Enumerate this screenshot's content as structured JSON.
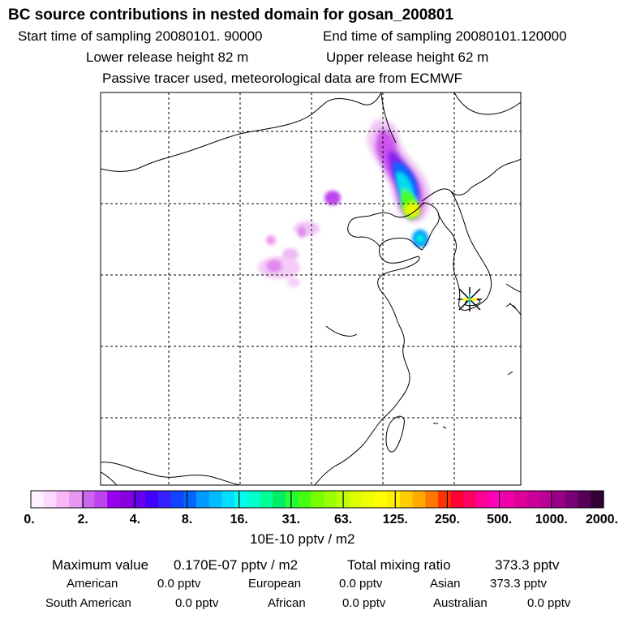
{
  "header": {
    "title": "BC  source contributions in nested domain for gosan_200801",
    "start_label": "Start time of sampling 20080101. 90000",
    "end_label": "End time of sampling 20080101.120000",
    "lower_label": "Lower release height   82 m",
    "upper_label": "Upper release height   62 m",
    "tracer_line": "Passive tracer used, meteorological data are from ECMWF"
  },
  "chart_data": {
    "type": "heatmap",
    "title": "BC  source contributions in nested domain for gosan_200801",
    "grid": true,
    "colorbar": {
      "ticks": [
        "0.",
        "2.",
        "4.",
        "8.",
        "16.",
        "31.",
        "63.",
        "125.",
        "250.",
        "500.",
        "1000.",
        "2000."
      ],
      "units": "10E-10 pptv / m2",
      "colors": [
        "#fff0ff",
        "#ffd9ff",
        "#f8b8f8",
        "#e898f0",
        "#cc66ee",
        "#bb44ee",
        "#9900ee",
        "#8800dd",
        "#6600ee",
        "#4400ff",
        "#3322ff",
        "#1144ff",
        "#0066ff",
        "#0099ff",
        "#00bbff",
        "#00ddff",
        "#00ffee",
        "#00ffcc",
        "#00ff99",
        "#00ee66",
        "#22ff33",
        "#44ff11",
        "#77ff00",
        "#99ff00",
        "#bbff00",
        "#ddff00",
        "#eeff00",
        "#ffff00",
        "#ffee00",
        "#ffcc00",
        "#ffaa00",
        "#ff7700",
        "#ff3300",
        "#ff0033",
        "#ff0066",
        "#ff0099",
        "#ff00bb",
        "#ee00aa",
        "#dd0099",
        "#cc0099",
        "#bb0099",
        "#990088",
        "#770077",
        "#550055",
        "#330033"
      ]
    },
    "receptor": "gosan"
  },
  "footer": {
    "max_label": "Maximum value",
    "max_value": "0.170E-07 pptv / m2",
    "total_label": "Total mixing ratio",
    "total_value": "373.3 pptv",
    "regions": [
      {
        "name": "American",
        "value": "0.0 pptv"
      },
      {
        "name": "European",
        "value": "0.0 pptv"
      },
      {
        "name": "Asian",
        "value": "373.3 pptv"
      },
      {
        "name": "South American",
        "value": "0.0 pptv"
      },
      {
        "name": "African",
        "value": "0.0 pptv"
      },
      {
        "name": "Australian",
        "value": "0.0 pptv"
      }
    ]
  }
}
